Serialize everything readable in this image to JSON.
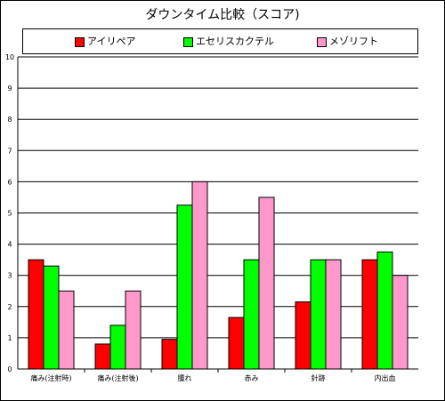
{
  "chart_data": {
    "type": "bar",
    "title": "ダウンタイム比較（スコア)",
    "categories": [
      "痛み(注射時)",
      "痛み(注射後)",
      "腫れ",
      "赤み",
      "針跡",
      "内出血"
    ],
    "series": [
      {
        "name": "アイリペア",
        "color": "#ff0000",
        "values": [
          3.5,
          0.8,
          0.95,
          1.65,
          2.15,
          3.5
        ]
      },
      {
        "name": "エセリスカクテル",
        "color": "#00ff00",
        "values": [
          3.3,
          1.4,
          5.25,
          3.5,
          3.5,
          3.75
        ]
      },
      {
        "name": "メゾリフト",
        "color": "#ff99cc",
        "values": [
          2.5,
          2.5,
          6.0,
          5.5,
          3.5,
          3.0
        ]
      }
    ],
    "ylim": [
      0,
      10
    ],
    "yticks": [
      "0",
      "1",
      "2",
      "3",
      "4",
      "5",
      "6",
      "7",
      "8",
      "9",
      "10"
    ],
    "grid": true,
    "legend_position": "top"
  }
}
